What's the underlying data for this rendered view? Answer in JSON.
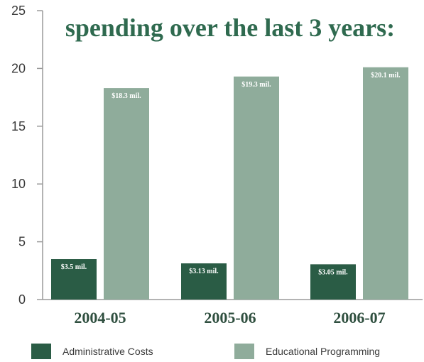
{
  "chart_data": {
    "type": "bar",
    "title": "spending over the last 3 years:",
    "categories": [
      "2004-05",
      "2005-06",
      "2006-07"
    ],
    "series": [
      {
        "name": "Administrative Costs",
        "values": [
          3.5,
          3.13,
          3.05
        ],
        "labels": [
          "$3.5 mil.",
          "$3.13 mil.",
          "$3.05 mil."
        ],
        "color": "#2a5c45"
      },
      {
        "name": "Educational Programming",
        "values": [
          18.3,
          19.3,
          20.1
        ],
        "labels": [
          "$18.3 mil.",
          "$19.3 mil.",
          "$20.1 mil."
        ],
        "color": "#8fac9b"
      }
    ],
    "ylim": [
      0,
      25
    ],
    "yticks": [
      0,
      5,
      10,
      15,
      20,
      25
    ],
    "legend_position": "bottom",
    "grid": false,
    "axis_color": "#9a9a9a"
  }
}
